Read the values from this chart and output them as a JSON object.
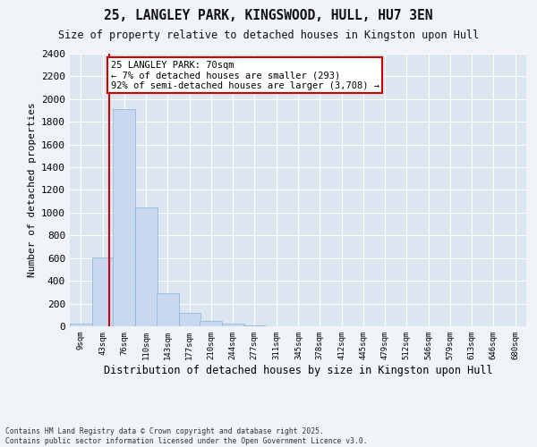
{
  "title_line1": "25, LANGLEY PARK, KINGSWOOD, HULL, HU7 3EN",
  "title_line2": "Size of property relative to detached houses in Kingston upon Hull",
  "xlabel": "Distribution of detached houses by size in Kingston upon Hull",
  "ylabel": "Number of detached properties",
  "bins": [
    "9sqm",
    "43sqm",
    "76sqm",
    "110sqm",
    "143sqm",
    "177sqm",
    "210sqm",
    "244sqm",
    "277sqm",
    "311sqm",
    "345sqm",
    "378sqm",
    "412sqm",
    "445sqm",
    "479sqm",
    "512sqm",
    "546sqm",
    "579sqm",
    "613sqm",
    "646sqm",
    "680sqm"
  ],
  "bin_left_edges": [
    9,
    43,
    76,
    110,
    143,
    177,
    210,
    244,
    277,
    311,
    345,
    378,
    412,
    445,
    479,
    512,
    546,
    579,
    613,
    646,
    680
  ],
  "bin_width": 34,
  "values": [
    20,
    605,
    1910,
    1045,
    295,
    115,
    50,
    20,
    5,
    0,
    0,
    0,
    0,
    0,
    0,
    0,
    0,
    0,
    0,
    0,
    0
  ],
  "bar_color": "#c8d8ee",
  "bar_edge_color": "#8ab0d8",
  "plot_bg_color": "#dce6f0",
  "fig_bg_color": "#f0f4f8",
  "grid_color": "#ffffff",
  "property_line_x": 70,
  "property_line_color": "#cc0000",
  "annotation_text": "25 LANGLEY PARK: 70sqm\n← 7% of detached houses are smaller (293)\n92% of semi-detached houses are larger (3,708) →",
  "annotation_box_edgecolor": "#cc0000",
  "annotation_box_facecolor": "#ffffff",
  "ylim": [
    0,
    2400
  ],
  "yticks": [
    0,
    200,
    400,
    600,
    800,
    1000,
    1200,
    1400,
    1600,
    1800,
    2000,
    2200,
    2400
  ],
  "footnote": "Contains HM Land Registry data © Crown copyright and database right 2025.\nContains public sector information licensed under the Open Government Licence v3.0."
}
